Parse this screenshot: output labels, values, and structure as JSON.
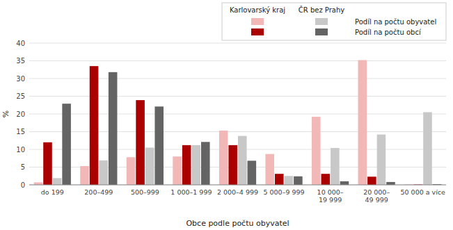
{
  "chart_data": {
    "type": "bar",
    "categories": [
      "do 199",
      "200–499",
      "500–999",
      "1 000–1 999",
      "2 000–4 999",
      "5 000–9 999",
      "10 000–\n19 999",
      "20 000–\n49 999",
      "50 000 a více"
    ],
    "series": [
      {
        "color": "#f2b8b8",
        "values": [
          0.7,
          5.3,
          7.8,
          8.0,
          15.3,
          8.7,
          19.2,
          35.2,
          0.1
        ]
      },
      {
        "color": "#aa0000",
        "values": [
          12.0,
          33.5,
          23.9,
          11.2,
          11.2,
          3.1,
          3.1,
          2.3,
          0.1
        ]
      },
      {
        "name": "Podíl na počtu obyvatel",
        "color": "#c8c8c8",
        "values": [
          1.9,
          6.9,
          10.5,
          11.2,
          13.8,
          2.5,
          10.4,
          14.2,
          20.5
        ]
      },
      {
        "name": "Podíl na počtu obcí",
        "color": "#646464",
        "values": [
          22.9,
          31.8,
          22.1,
          12.1,
          6.8,
          2.4,
          1.0,
          0.8,
          0.2
        ]
      }
    ],
    "legend_title": [
      "Karlovarský kraj",
      "ČR bez Prahy"
    ],
    "ylabel": "%",
    "xlabel": "Obce podle počtu obyvatel",
    "ylim": [
      0,
      40
    ],
    "yticks": [
      0,
      5,
      10,
      15,
      20,
      25,
      30,
      35,
      40
    ],
    "grid": true,
    "legend": "upper right"
  }
}
